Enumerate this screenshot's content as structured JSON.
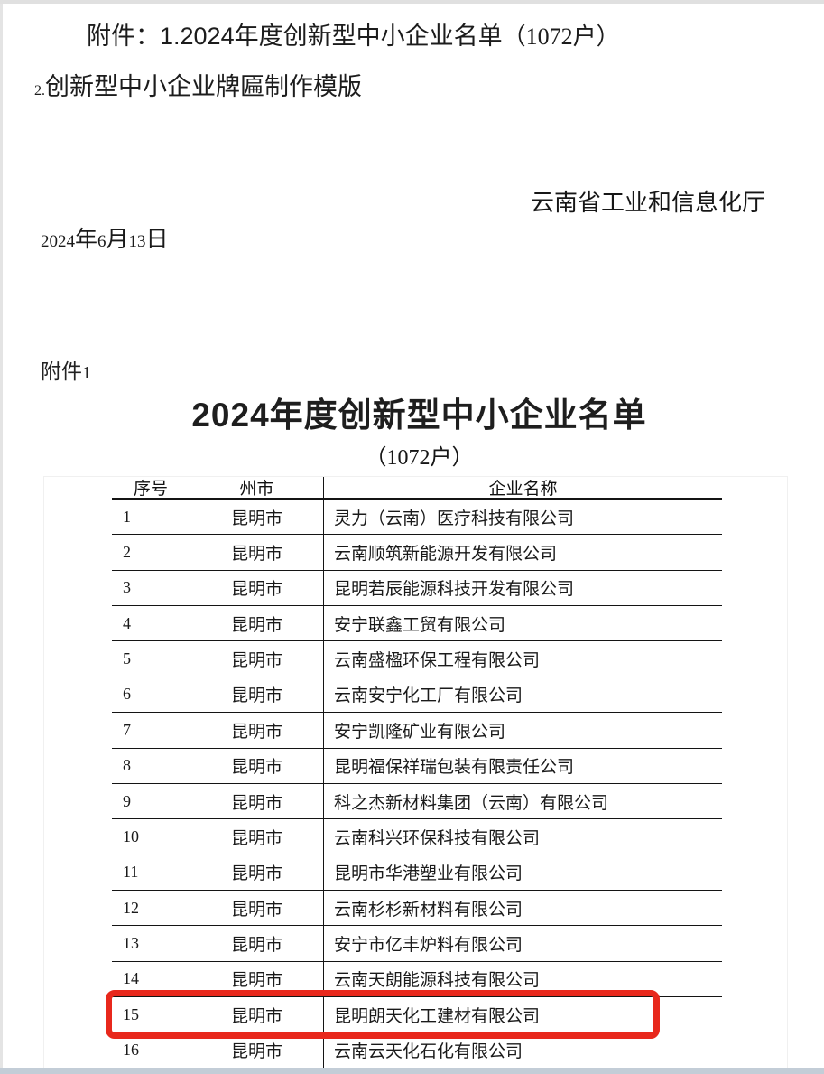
{
  "header": {
    "note_line1_main": "附件：1.2024年度创新型中小企业名单",
    "note_line1_count": "（1072户）",
    "note_line2_prefix": "2.",
    "note_line2_text": "创新型中小企业牌匾制作模版",
    "agency": "云南省工业和信息化厅",
    "date": {
      "year": "2024",
      "year_unit": "年",
      "month": "6",
      "month_unit": "月",
      "day": "13",
      "day_unit": "日"
    }
  },
  "attachment": {
    "label_text": "附件",
    "label_num": "1",
    "title": "2024年度创新型中小企业名单",
    "subtitle": "（1072户）"
  },
  "table": {
    "headers": [
      "序号",
      "州市",
      "企业名称"
    ],
    "rows": [
      {
        "no": "1",
        "city": "昆明市",
        "company": "灵力（云南）医疗科技有限公司"
      },
      {
        "no": "2",
        "city": "昆明市",
        "company": "云南顺筑新能源开发有限公司"
      },
      {
        "no": "3",
        "city": "昆明市",
        "company": "昆明若辰能源科技开发有限公司"
      },
      {
        "no": "4",
        "city": "昆明市",
        "company": "安宁联鑫工贸有限公司"
      },
      {
        "no": "5",
        "city": "昆明市",
        "company": "云南盛楹环保工程有限公司"
      },
      {
        "no": "6",
        "city": "昆明市",
        "company": "云南安宁化工厂有限公司"
      },
      {
        "no": "7",
        "city": "昆明市",
        "company": "安宁凯隆矿业有限公司"
      },
      {
        "no": "8",
        "city": "昆明市",
        "company": "昆明福保祥瑞包装有限责任公司"
      },
      {
        "no": "9",
        "city": "昆明市",
        "company": "科之杰新材料集团（云南）有限公司"
      },
      {
        "no": "10",
        "city": "昆明市",
        "company": "云南科兴环保科技有限公司"
      },
      {
        "no": "11",
        "city": "昆明市",
        "company": "昆明市华港塑业有限公司"
      },
      {
        "no": "12",
        "city": "昆明市",
        "company": "云南杉杉新材料有限公司"
      },
      {
        "no": "13",
        "city": "昆明市",
        "company": "安宁市亿丰炉料有限公司"
      },
      {
        "no": "14",
        "city": "昆明市",
        "company": "云南天朗能源科技有限公司"
      },
      {
        "no": "15",
        "city": "昆明市",
        "company": "昆明朗天化工建材有限公司",
        "highlighted": true
      },
      {
        "no": "16",
        "city": "昆明市",
        "company": "云南云天化石化有限公司"
      }
    ],
    "highlighted_row_no": "15"
  },
  "colors": {
    "highlight_red": "#e8281c",
    "table_line": "#141414",
    "top_strip": "#e0e0e0",
    "bottom_strip": "#c3cdd7"
  }
}
